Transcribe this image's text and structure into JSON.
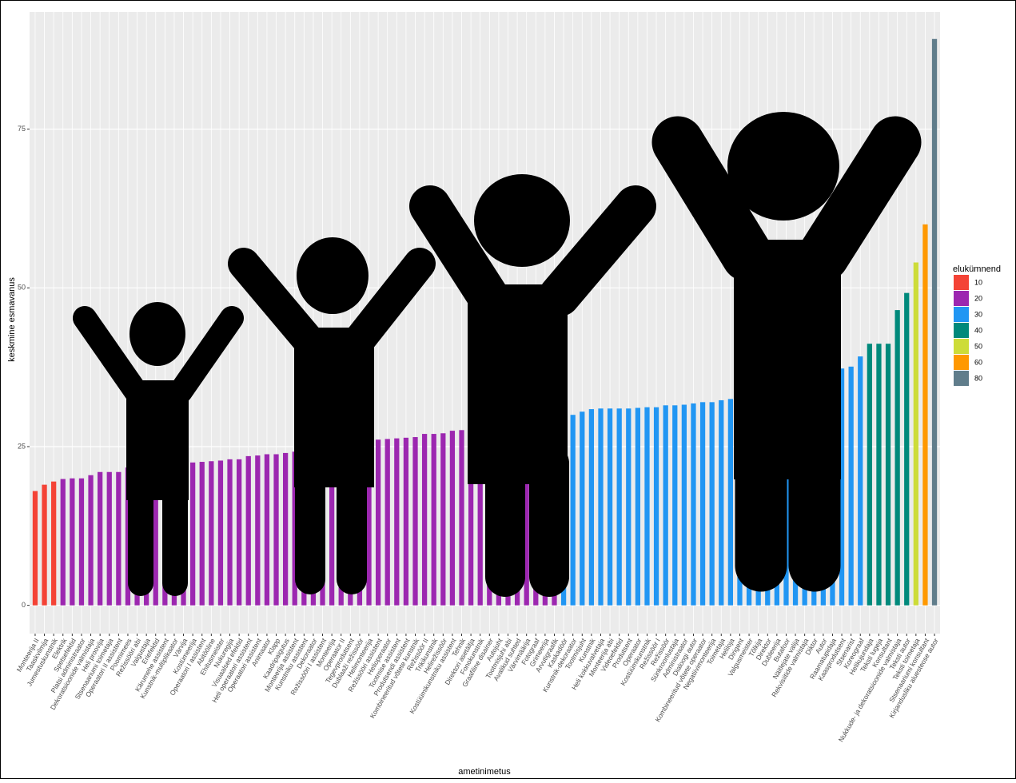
{
  "chart_data": {
    "type": "bar",
    "x_label": "ametinimetus",
    "y_label": "keskmine esmavanus",
    "categories": [
      "Monteerija II",
      "Taaskvilmija",
      "Jumestuskunstnik",
      "Elektrik",
      "Spetsefektid",
      "Platsi administraator",
      "Dekoratsioonide valmistaja",
      "Heli proovija",
      "Stsenaariumi toimetaja",
      "Operaatori II assistent",
      "Poomimees",
      "Režissööri abi",
      "Valgustaja",
      "Eriefektid",
      "Kärumehe assistent",
      "Kunstnik-multiplikaator",
      "Värvija",
      "Kostümeerija",
      "Operaatori I assistent",
      "Abitööline",
      "Ehitusmeister",
      "Nukuregija",
      "Visuaalsed efektid",
      "Heli operaatori assistent",
      "Operaatori assistent",
      "Animaator",
      "Klapp",
      "Kaadripaigutus",
      "Monteerija assistent",
      "Kunstniku assistent",
      "Dekoraator",
      "Režissööri I assistent",
      "Monteerija",
      "Operaator II",
      "Tegevprodutsent",
      "Dublaaži režissöör",
      "Helimonteerija",
      "Režissööri assistent",
      "Helioperaator",
      "Tootmise assistent",
      "Produtsendi assistent",
      "Kombineeritud võtete kunstnik",
      "Režissöör II",
      "Trikikunstnik",
      "Helirežissöör",
      "Kostüümikunstniku assistent",
      "Tehnik",
      "Direktori asetäitja",
      "Fonokunstnik",
      "Graafiline disainer",
      "Autojuht",
      "Tootmisjuhi abi",
      "Avalikud suhted",
      "Värvimäärija",
      "Fotograaf",
      "Grimeerija",
      "Arvutigraafik",
      "Kaskadöör",
      "Kunstnik-dekoraator",
      "Tootmisjuht",
      "Kunstnik",
      "Heli kokkuvalvetaja",
      "Monteerija abi",
      "Videoefektid",
      "Produtsent",
      "Operaator",
      "Kostüümikunstnik",
      "Režissöör I",
      "Režissöör",
      "Sünkroonlustaja",
      "Administraator",
      "Dialoogi autor",
      "Kombineeritud võtete operaator",
      "Negatiivimonteerija",
      "Toimetaja",
      "Heliloja",
      "Dirigent",
      "Valgusmeister",
      "Tõlkija",
      "Direktor",
      "Dubleerija",
      "Butafoor",
      "Näitlejate valija",
      "Rekvisiitide valmistaja",
      "Diktor",
      "Autor",
      "Raamatupidaja",
      "Kaasprodutsent",
      "Stsenarist",
      "Koreograaf",
      "Helikujundaja",
      "Teksti lugeja",
      "Konsultant",
      "Nukkude- ja dekoratsioonide valmistaja",
      "Teksti autor",
      "Teksti toimetaja",
      "Stsenaariumi konsultant",
      "Kirjandusliku aluesteose autor"
    ],
    "values": [
      18,
      19,
      19.5,
      19.9,
      20,
      20,
      20.5,
      21,
      21,
      21,
      21.7,
      21.8,
      22,
      22,
      22,
      22,
      22,
      22.5,
      22.6,
      22.7,
      22.8,
      23,
      23,
      23.5,
      23.6,
      23.8,
      23.8,
      24,
      24.2,
      24.5,
      25,
      25,
      25.5,
      25.5,
      25.8,
      26,
      26,
      26.1,
      26.2,
      26.3,
      26.4,
      26.5,
      27,
      27,
      27.1,
      27.5,
      27.6,
      27.8,
      28,
      28.2,
      28.5,
      28.7,
      29,
      29,
      29.2,
      29.5,
      29.7,
      30,
      30,
      30.5,
      30.9,
      31,
      31,
      31,
      31,
      31.1,
      31.2,
      31.2,
      31.5,
      31.5,
      31.6,
      31.8,
      32,
      32,
      32.3,
      32.5,
      32.8,
      33,
      33.1,
      33.2,
      33.2,
      34,
      34.7,
      35,
      35.2,
      35.7,
      36.7,
      37.3,
      37.6,
      39.2,
      41.2,
      41.2,
      41.2,
      46.5,
      49.2,
      54,
      60,
      89.2
    ],
    "colors": [
      "#f44336",
      "#f44336",
      "#f44336",
      "#9c27b0",
      "#9c27b0",
      "#9c27b0",
      "#9c27b0",
      "#9c27b0",
      "#9c27b0",
      "#9c27b0",
      "#9c27b0",
      "#9c27b0",
      "#9c27b0",
      "#9c27b0",
      "#9c27b0",
      "#9c27b0",
      "#9c27b0",
      "#9c27b0",
      "#9c27b0",
      "#9c27b0",
      "#9c27b0",
      "#9c27b0",
      "#9c27b0",
      "#9c27b0",
      "#9c27b0",
      "#9c27b0",
      "#9c27b0",
      "#9c27b0",
      "#9c27b0",
      "#9c27b0",
      "#9c27b0",
      "#9c27b0",
      "#9c27b0",
      "#9c27b0",
      "#9c27b0",
      "#9c27b0",
      "#9c27b0",
      "#9c27b0",
      "#9c27b0",
      "#9c27b0",
      "#9c27b0",
      "#9c27b0",
      "#9c27b0",
      "#9c27b0",
      "#9c27b0",
      "#9c27b0",
      "#9c27b0",
      "#9c27b0",
      "#9c27b0",
      "#9c27b0",
      "#9c27b0",
      "#9c27b0",
      "#9c27b0",
      "#9c27b0",
      "#9c27b0",
      "#9c27b0",
      "#9c27b0",
      "#2196f3",
      "#2196f3",
      "#2196f3",
      "#2196f3",
      "#2196f3",
      "#2196f3",
      "#2196f3",
      "#2196f3",
      "#2196f3",
      "#2196f3",
      "#2196f3",
      "#2196f3",
      "#2196f3",
      "#2196f3",
      "#2196f3",
      "#2196f3",
      "#2196f3",
      "#2196f3",
      "#2196f3",
      "#2196f3",
      "#2196f3",
      "#2196f3",
      "#2196f3",
      "#2196f3",
      "#2196f3",
      "#2196f3",
      "#2196f3",
      "#2196f3",
      "#2196f3",
      "#2196f3",
      "#2196f3",
      "#2196f3",
      "#2196f3",
      "#00897b",
      "#00897b",
      "#00897b",
      "#00897b",
      "#00897b",
      "#cddc39",
      "#ff9800",
      "#607d8b"
    ],
    "ylim": [
      -4.45,
      93.45
    ],
    "yticks": [
      0,
      25,
      50,
      75
    ],
    "grid": true,
    "legend": {
      "title": "elukümnend",
      "position": "right",
      "items": [
        {
          "name": "10",
          "color": "#f44336"
        },
        {
          "name": "20",
          "color": "#9c27b0"
        },
        {
          "name": "30",
          "color": "#2196f3"
        },
        {
          "name": "40",
          "color": "#00897b"
        },
        {
          "name": "50",
          "color": "#cddc39"
        },
        {
          "name": "60",
          "color": "#ff9800"
        },
        {
          "name": "80",
          "color": "#607d8b"
        }
      ]
    }
  }
}
